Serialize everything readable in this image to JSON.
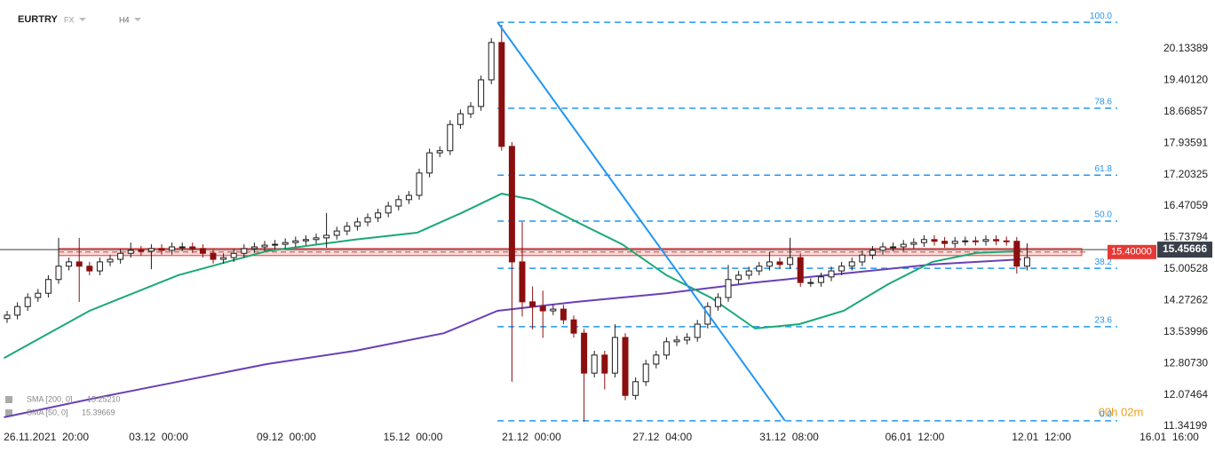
{
  "chart_data": {
    "type": "candlestick",
    "symbol": "EURTRY",
    "market": "FX",
    "interval": "H4",
    "timer": "00h 02m",
    "open": [
      13.85,
      13.93,
      14.13,
      14.34,
      14.44,
      14.76,
      15.07,
      15.17,
      15.07,
      14.96,
      15.17,
      15.23,
      15.37,
      15.44,
      15.42,
      15.48,
      15.44,
      15.52,
      15.52,
      15.48,
      15.37,
      15.23,
      15.27,
      15.37,
      15.48,
      15.52,
      15.56,
      15.58,
      15.62,
      15.66,
      15.69,
      15.73,
      15.79,
      15.89,
      16.0,
      16.1,
      16.2,
      16.31,
      16.47,
      16.62,
      16.72,
      17.24,
      17.71,
      17.76,
      18.37,
      18.62,
      18.79,
      19.41,
      20.28,
      17.86,
      15.17,
      14.24,
      14.13,
      14.03,
      14.07,
      13.82,
      13.51,
      12.58,
      13.0,
      12.58,
      13.41,
      12.06,
      12.38,
      12.79,
      13.0,
      13.31,
      13.35,
      13.41,
      13.72,
      14.13,
      14.34,
      14.76,
      14.86,
      14.96,
      15.07,
      15.17,
      15.11,
      15.27,
      14.69,
      14.69,
      14.82,
      14.96,
      15.07,
      15.17,
      15.33,
      15.44,
      15.52,
      15.52,
      15.58,
      15.62,
      15.69,
      15.65,
      15.6,
      15.65,
      15.66,
      15.65,
      15.69,
      15.66,
      15.65,
      15.07
    ],
    "high": [
      14.03,
      14.23,
      14.44,
      14.54,
      14.86,
      15.73,
      15.27,
      15.73,
      15.17,
      15.27,
      15.33,
      15.47,
      15.62,
      15.54,
      15.58,
      15.58,
      15.62,
      15.62,
      15.62,
      15.58,
      15.47,
      15.37,
      15.47,
      15.58,
      15.62,
      15.66,
      15.68,
      15.72,
      15.76,
      15.79,
      15.83,
      16.31,
      15.99,
      16.1,
      16.2,
      16.3,
      16.41,
      16.57,
      16.72,
      16.82,
      17.34,
      17.81,
      17.86,
      18.47,
      18.72,
      18.89,
      19.51,
      20.38,
      20.69,
      17.96,
      16.1,
      14.6,
      14.5,
      14.17,
      14.17,
      13.92,
      13.61,
      13.1,
      13.1,
      13.72,
      13.51,
      12.48,
      12.89,
      13.1,
      13.41,
      13.45,
      13.51,
      13.82,
      14.23,
      14.44,
      15.1,
      14.96,
      15.06,
      15.17,
      15.4,
      15.27,
      15.73,
      15.37,
      14.79,
      14.92,
      15.06,
      15.17,
      15.27,
      15.43,
      15.54,
      15.62,
      15.62,
      15.68,
      15.72,
      15.79,
      15.79,
      15.75,
      15.75,
      15.76,
      15.76,
      15.79,
      15.79,
      15.76,
      15.75,
      15.6
    ],
    "low": [
      13.75,
      13.83,
      14.03,
      14.24,
      14.34,
      14.66,
      14.97,
      14.24,
      14.86,
      14.86,
      15.07,
      15.13,
      15.27,
      15.32,
      15.0,
      15.34,
      15.34,
      15.42,
      15.38,
      15.27,
      15.13,
      15.13,
      15.17,
      15.27,
      15.38,
      15.42,
      15.46,
      15.48,
      15.52,
      15.56,
      15.59,
      15.5,
      15.69,
      15.79,
      15.9,
      16.0,
      16.1,
      16.21,
      16.37,
      16.52,
      16.62,
      17.14,
      17.61,
      17.66,
      18.27,
      18.52,
      18.69,
      19.31,
      17.76,
      12.38,
      13.9,
      13.6,
      13.4,
      13.93,
      13.72,
      13.41,
      11.45,
      12.48,
      12.2,
      12.48,
      11.95,
      11.96,
      12.28,
      12.69,
      12.9,
      13.21,
      13.25,
      13.31,
      13.62,
      14.03,
      14.24,
      14.66,
      14.76,
      14.86,
      14.97,
      15.01,
      15.01,
      14.59,
      14.59,
      14.59,
      14.72,
      14.86,
      14.97,
      15.07,
      15.23,
      15.34,
      15.42,
      15.42,
      15.48,
      15.52,
      15.55,
      15.5,
      15.5,
      15.55,
      15.55,
      15.55,
      15.56,
      15.55,
      14.9,
      14.97
    ],
    "close": [
      13.93,
      14.13,
      14.34,
      14.44,
      14.76,
      15.07,
      15.17,
      15.07,
      14.96,
      15.17,
      15.23,
      15.37,
      15.44,
      15.42,
      15.48,
      15.44,
      15.52,
      15.52,
      15.48,
      15.37,
      15.23,
      15.27,
      15.37,
      15.48,
      15.52,
      15.56,
      15.58,
      15.62,
      15.66,
      15.69,
      15.73,
      15.79,
      15.89,
      16.0,
      16.1,
      16.2,
      16.31,
      16.47,
      16.62,
      16.72,
      17.24,
      17.71,
      17.76,
      18.37,
      18.62,
      18.79,
      19.41,
      20.28,
      17.86,
      15.17,
      14.24,
      14.13,
      14.03,
      14.07,
      13.82,
      13.51,
      12.58,
      13.0,
      12.58,
      13.41,
      12.06,
      12.38,
      12.79,
      13.0,
      13.31,
      13.35,
      13.41,
      13.72,
      14.13,
      14.34,
      14.76,
      14.86,
      14.96,
      15.07,
      15.17,
      15.11,
      15.27,
      14.69,
      14.69,
      14.82,
      14.96,
      15.07,
      15.17,
      15.33,
      15.44,
      15.52,
      15.52,
      15.58,
      15.62,
      15.69,
      15.65,
      15.6,
      15.65,
      15.66,
      15.65,
      15.69,
      15.66,
      15.65,
      15.07,
      15.27
    ],
    "up_color": "#1b1b1b",
    "down_color": "#8b0f0f",
    "series": [
      {
        "name": "SMA [200, 0]",
        "legend_value": "15.25210",
        "color": "#6a3fb5",
        "x": [
          -0.3,
          8,
          16.6,
          25.2,
          33.8,
          42.4,
          47.6,
          55.3,
          64,
          72.6,
          81.2,
          89.8,
          98.4
        ],
        "values": [
          11.55,
          11.97,
          12.38,
          12.79,
          13.1,
          13.51,
          14.03,
          14.24,
          14.44,
          14.69,
          14.9,
          15.11,
          15.23
        ]
      },
      {
        "name": "SMA [50, 0]",
        "legend_value": "15.39669",
        "color": "#19a974",
        "x": [
          -0.3,
          8,
          16.6,
          25.2,
          33.8,
          39.8,
          44.1,
          48,
          51,
          55.3,
          59.7,
          64,
          68.3,
          72.6,
          76.9,
          81.2,
          85.5,
          89.8,
          94.1,
          98.4
        ],
        "values": [
          12.93,
          14.03,
          14.86,
          15.42,
          15.69,
          15.85,
          16.31,
          16.76,
          16.62,
          16.1,
          15.58,
          14.86,
          14.34,
          13.62,
          13.72,
          14.03,
          14.65,
          15.17,
          15.38,
          15.42
        ]
      }
    ],
    "fibonacci": {
      "color": "#2196f3",
      "x_start": 47.6,
      "levels": [
        {
          "label": "100.0",
          "value": 20.75
        },
        {
          "label": "78.6",
          "value": 18.75
        },
        {
          "label": "61.8",
          "value": 17.19
        },
        {
          "label": "50.0",
          "value": 16.12
        },
        {
          "label": "38.2",
          "value": 15.02
        },
        {
          "label": "23.6",
          "value": 13.66
        },
        {
          "label": "0.0",
          "value": 11.47
        }
      ]
    },
    "trendline": {
      "color": "#2196f3",
      "x": [
        47.6,
        75.5
      ],
      "values": [
        20.75,
        11.47
      ]
    },
    "zone": {
      "value": 15.4,
      "label": "15.40000",
      "color": "#e53935"
    },
    "last_price": 15.45666,
    "ylim": [
      11.28,
      21.27
    ],
    "yticks": [
      20.13389,
      {
        "value": 19.4012,
        "label": "19.40120"
      },
      18.66857,
      17.93591,
      17.20325,
      16.47059,
      15.73794,
      15.00528,
      14.27262,
      13.53996,
      {
        "value": 12.8073,
        "label": "12.80730"
      },
      12.07464,
      11.34199
    ],
    "xlim": [
      -0.69,
      117.24
    ],
    "xticks": [
      {
        "value": 3.8,
        "label": "26.11.2021  20:00"
      },
      {
        "value": 14.7,
        "label": "03.12  00:00"
      },
      {
        "value": 27.1,
        "label": "09.12  00:00"
      },
      {
        "value": 39.4,
        "label": "15.12  00:00"
      },
      {
        "value": 50.9,
        "label": "21.12  00:00"
      },
      {
        "value": 63.6,
        "label": "27.12  04:00"
      },
      {
        "value": 75.9,
        "label": "31.12  08:00"
      },
      {
        "value": 88.1,
        "label": "06.01  12:00"
      },
      {
        "value": 100.4,
        "label": "12.01  12:00"
      },
      {
        "value": 112.8,
        "label": "16.01  16:00"
      }
    ]
  }
}
